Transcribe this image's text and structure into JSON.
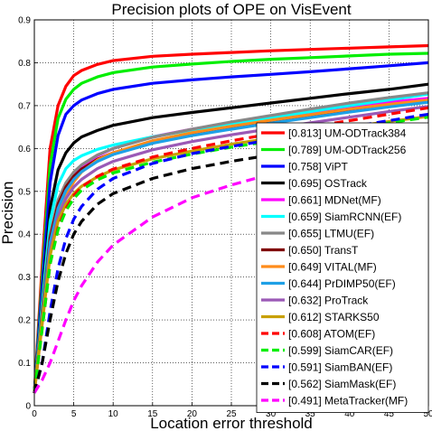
{
  "chart_data": {
    "type": "line",
    "title": "Precision plots of OPE on VisEvent",
    "xlabel": "Location error threshold",
    "ylabel": "Precision",
    "xlim": [
      0,
      50
    ],
    "ylim": [
      0,
      0.9
    ],
    "xticks": [
      "0",
      "5",
      "10",
      "15",
      "20",
      "25",
      "30",
      "35",
      "40",
      "45",
      "50"
    ],
    "yticks": [
      "0",
      "0.1",
      "0.2",
      "0.3",
      "0.4",
      "0.5",
      "0.6",
      "0.7",
      "0.8",
      "0.9"
    ],
    "grid": true,
    "legend_position": "bottom-right",
    "series": [
      {
        "name": "[0.813] UM-ODTrack384",
        "color": "#ff0000",
        "dashed": false,
        "x": [
          0,
          1,
          2,
          3,
          4,
          5,
          6,
          8,
          10,
          15,
          20,
          25,
          30,
          35,
          40,
          45,
          50
        ],
        "y": [
          0.03,
          0.33,
          0.6,
          0.7,
          0.745,
          0.77,
          0.782,
          0.796,
          0.805,
          0.815,
          0.82,
          0.824,
          0.828,
          0.831,
          0.834,
          0.837,
          0.84
        ]
      },
      {
        "name": "[0.789] UM-ODTrack256",
        "color": "#00ee00",
        "dashed": false,
        "x": [
          0,
          1,
          2,
          3,
          4,
          5,
          6,
          8,
          10,
          15,
          20,
          25,
          30,
          35,
          40,
          45,
          50
        ],
        "y": [
          0.03,
          0.3,
          0.56,
          0.67,
          0.715,
          0.738,
          0.752,
          0.767,
          0.777,
          0.79,
          0.797,
          0.803,
          0.808,
          0.812,
          0.816,
          0.82,
          0.822
        ]
      },
      {
        "name": "[0.758] ViPT",
        "color": "#0000ff",
        "dashed": false,
        "x": [
          0,
          1,
          2,
          3,
          4,
          5,
          6,
          8,
          10,
          15,
          20,
          25,
          30,
          35,
          40,
          45,
          50
        ],
        "y": [
          0.03,
          0.28,
          0.52,
          0.63,
          0.68,
          0.7,
          0.713,
          0.728,
          0.738,
          0.752,
          0.76,
          0.767,
          0.773,
          0.779,
          0.786,
          0.793,
          0.8
        ]
      },
      {
        "name": "[0.695] OSTrack",
        "color": "#000000",
        "dashed": false,
        "x": [
          0,
          1,
          2,
          3,
          4,
          5,
          6,
          8,
          10,
          15,
          20,
          25,
          30,
          35,
          40,
          45,
          50
        ],
        "y": [
          0.03,
          0.25,
          0.46,
          0.55,
          0.59,
          0.613,
          0.627,
          0.642,
          0.654,
          0.672,
          0.684,
          0.695,
          0.706,
          0.717,
          0.728,
          0.738,
          0.75
        ]
      },
      {
        "name": "[0.661] MDNet(MF)",
        "color": "#ff00ff",
        "dashed": false,
        "x": [
          0,
          1,
          2,
          3,
          4,
          5,
          6,
          8,
          10,
          15,
          20,
          25,
          30,
          35,
          40,
          45,
          50
        ],
        "y": [
          0.03,
          0.2,
          0.36,
          0.45,
          0.505,
          0.54,
          0.56,
          0.583,
          0.6,
          0.627,
          0.645,
          0.66,
          0.673,
          0.685,
          0.697,
          0.708,
          0.717
        ]
      },
      {
        "name": "[0.659] SiamRCNN(EF)",
        "color": "#00ffff",
        "dashed": false,
        "x": [
          0,
          1,
          2,
          3,
          4,
          5,
          6,
          8,
          10,
          15,
          20,
          25,
          30,
          35,
          40,
          45,
          50
        ],
        "y": [
          0.03,
          0.24,
          0.43,
          0.515,
          0.553,
          0.572,
          0.583,
          0.598,
          0.608,
          0.627,
          0.643,
          0.658,
          0.672,
          0.686,
          0.7,
          0.713,
          0.727
        ]
      },
      {
        "name": "[0.655] LTMU(EF)",
        "color": "#888888",
        "dashed": false,
        "x": [
          0,
          1,
          2,
          3,
          4,
          5,
          6,
          8,
          10,
          15,
          20,
          25,
          30,
          35,
          40,
          45,
          50
        ],
        "y": [
          0.03,
          0.22,
          0.4,
          0.48,
          0.52,
          0.545,
          0.562,
          0.585,
          0.6,
          0.626,
          0.645,
          0.662,
          0.677,
          0.692,
          0.706,
          0.719,
          0.73
        ]
      },
      {
        "name": "[0.650] TransT",
        "color": "#800000",
        "dashed": false,
        "x": [
          0,
          1,
          2,
          3,
          4,
          5,
          6,
          8,
          10,
          15,
          20,
          25,
          30,
          35,
          40,
          45,
          50
        ],
        "y": [
          0.03,
          0.22,
          0.39,
          0.47,
          0.51,
          0.535,
          0.552,
          0.575,
          0.59,
          0.615,
          0.633,
          0.648,
          0.662,
          0.675,
          0.688,
          0.7,
          0.712
        ]
      },
      {
        "name": "[0.649] VITAL(MF)",
        "color": "#ff8c1a",
        "dashed": false,
        "x": [
          0,
          1,
          2,
          3,
          4,
          5,
          6,
          8,
          10,
          15,
          20,
          25,
          30,
          35,
          40,
          45,
          50
        ],
        "y": [
          0.03,
          0.19,
          0.35,
          0.44,
          0.49,
          0.522,
          0.545,
          0.573,
          0.59,
          0.618,
          0.637,
          0.652,
          0.666,
          0.679,
          0.692,
          0.703,
          0.713
        ]
      },
      {
        "name": "[0.644] PrDIMP50(EF)",
        "color": "#1ea0e6",
        "dashed": false,
        "x": [
          0,
          1,
          2,
          3,
          4,
          5,
          6,
          8,
          10,
          15,
          20,
          25,
          30,
          35,
          40,
          45,
          50
        ],
        "y": [
          0.03,
          0.21,
          0.38,
          0.46,
          0.502,
          0.528,
          0.546,
          0.57,
          0.586,
          0.612,
          0.63,
          0.645,
          0.659,
          0.672,
          0.685,
          0.697,
          0.708
        ]
      },
      {
        "name": "[0.632] ProTrack",
        "color": "#9b59b6",
        "dashed": false,
        "x": [
          0,
          1,
          2,
          3,
          4,
          5,
          6,
          8,
          10,
          15,
          20,
          25,
          30,
          35,
          40,
          45,
          50
        ],
        "y": [
          0.03,
          0.2,
          0.36,
          0.44,
          0.483,
          0.51,
          0.528,
          0.553,
          0.57,
          0.597,
          0.616,
          0.632,
          0.646,
          0.66,
          0.673,
          0.686,
          0.698
        ]
      },
      {
        "name": "[0.612] STARKS50",
        "color": "#c8a000",
        "dashed": false,
        "x": [
          0,
          1,
          2,
          3,
          4,
          5,
          6,
          8,
          10,
          15,
          20,
          25,
          30,
          35,
          40,
          45,
          50
        ],
        "y": [
          0.03,
          0.2,
          0.35,
          0.43,
          0.47,
          0.495,
          0.512,
          0.534,
          0.55,
          0.576,
          0.594,
          0.61,
          0.624,
          0.637,
          0.65,
          0.663,
          0.675
        ]
      },
      {
        "name": "[0.608] ATOM(EF)",
        "color": "#ff0000",
        "dashed": true,
        "x": [
          0,
          1,
          2,
          3,
          4,
          5,
          6,
          8,
          10,
          15,
          20,
          25,
          30,
          35,
          40,
          45,
          50
        ],
        "y": [
          0.03,
          0.18,
          0.33,
          0.415,
          0.46,
          0.49,
          0.51,
          0.535,
          0.552,
          0.58,
          0.6,
          0.618,
          0.634,
          0.65,
          0.665,
          0.68,
          0.695
        ]
      },
      {
        "name": "[0.599] SiamCAR(EF)",
        "color": "#00ee00",
        "dashed": true,
        "x": [
          0,
          1,
          2,
          3,
          4,
          5,
          6,
          8,
          10,
          15,
          20,
          25,
          30,
          35,
          40,
          45,
          50
        ],
        "y": [
          0.03,
          0.18,
          0.33,
          0.41,
          0.455,
          0.483,
          0.503,
          0.527,
          0.543,
          0.568,
          0.587,
          0.603,
          0.617,
          0.632,
          0.646,
          0.66,
          0.673
        ]
      },
      {
        "name": "[0.591] SiamBAN(EF)",
        "color": "#0000ff",
        "dashed": true,
        "x": [
          0,
          1,
          2,
          3,
          4,
          5,
          6,
          8,
          10,
          15,
          20,
          25,
          30,
          35,
          40,
          45,
          50
        ],
        "y": [
          0.03,
          0.1,
          0.22,
          0.32,
          0.39,
          0.435,
          0.465,
          0.505,
          0.53,
          0.565,
          0.588,
          0.605,
          0.62,
          0.635,
          0.65,
          0.665,
          0.68
        ]
      },
      {
        "name": "[0.562] SiamMask(EF)",
        "color": "#000000",
        "dashed": true,
        "x": [
          0,
          1,
          2,
          3,
          4,
          5,
          6,
          8,
          10,
          15,
          20,
          25,
          30,
          35,
          40,
          45,
          50
        ],
        "y": [
          0.03,
          0.1,
          0.2,
          0.29,
          0.355,
          0.4,
          0.43,
          0.47,
          0.495,
          0.53,
          0.553,
          0.57,
          0.585,
          0.6,
          0.615,
          0.63,
          0.645
        ]
      },
      {
        "name": "[0.491] MetaTracker(MF)",
        "color": "#ff00ff",
        "dashed": true,
        "x": [
          0,
          1,
          2,
          3,
          4,
          5,
          6,
          8,
          10,
          15,
          20,
          25,
          30,
          35,
          40,
          45,
          50
        ],
        "y": [
          0.03,
          0.06,
          0.1,
          0.15,
          0.2,
          0.245,
          0.28,
          0.335,
          0.375,
          0.44,
          0.485,
          0.515,
          0.54,
          0.56,
          0.58,
          0.6,
          0.615
        ]
      }
    ]
  }
}
